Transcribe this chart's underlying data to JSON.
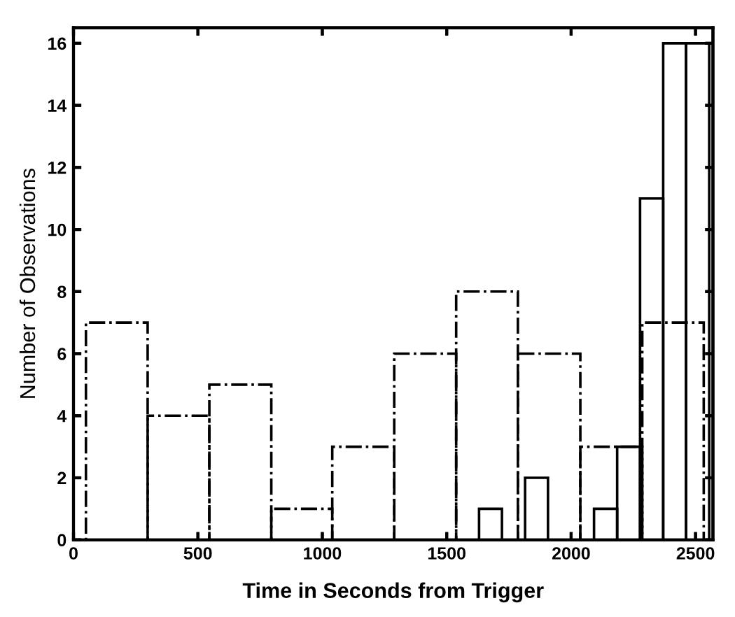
{
  "chart_data": [
    {
      "type": "histogram",
      "xlabel": "Time in Seconds from Trigger",
      "ylabel": "Number of Observations",
      "color": "#000000",
      "line_style": "dashdot",
      "bins": [
        50,
        298,
        546,
        795,
        1040,
        1289,
        1538,
        1786,
        2037,
        2286,
        2533
      ],
      "values": [
        7,
        4,
        5,
        1,
        3,
        6,
        8,
        6,
        3,
        7
      ],
      "xlim": [
        0,
        2570
      ],
      "ylim": [
        0,
        16.5
      ],
      "xticks": [
        0,
        500,
        1000,
        1500,
        2000,
        2500
      ],
      "yticks": [
        0,
        2,
        4,
        6,
        8,
        10,
        12,
        14,
        16
      ]
    },
    {
      "type": "histogram",
      "color": "#000000",
      "line_style": "solid",
      "bins": [
        1630,
        1722,
        1815,
        1907,
        2000,
        2092,
        2185,
        2277,
        2370,
        2462,
        2555
      ],
      "values": [
        1,
        0,
        2,
        0,
        0,
        1,
        3,
        11,
        16,
        16
      ],
      "xlim": [
        0,
        2570
      ],
      "ylim": [
        0,
        16.5
      ],
      "xticks": [
        0,
        500,
        1000,
        1500,
        2000,
        2500
      ],
      "yticks": [
        0,
        2,
        4,
        6,
        8,
        10,
        12,
        14,
        16
      ],
      "tick_labels": false
    }
  ]
}
